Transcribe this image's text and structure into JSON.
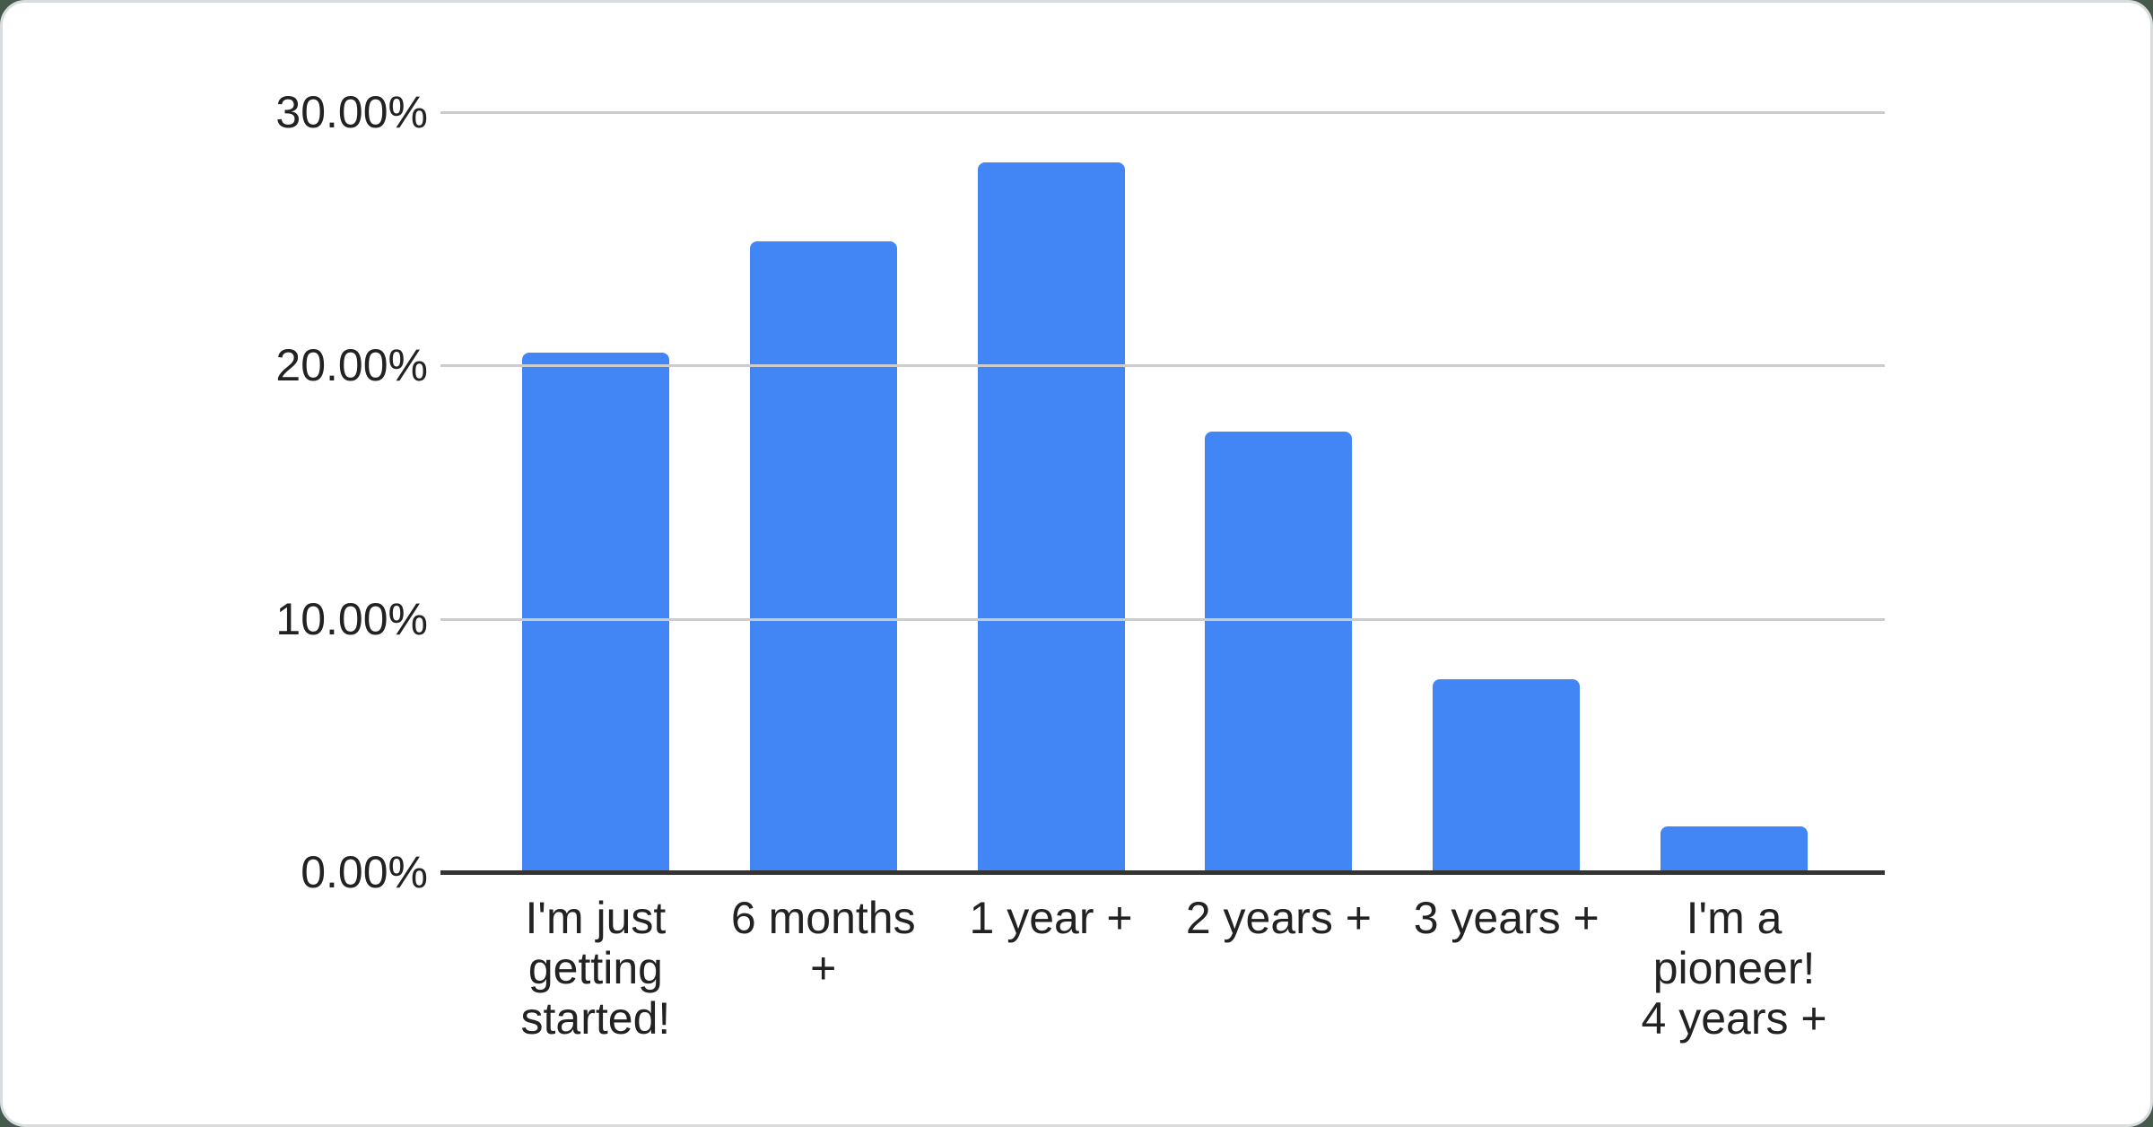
{
  "chart_data": {
    "type": "bar",
    "title": "",
    "categories": [
      "I'm just getting started!",
      "6 months +",
      "1 year +",
      "2 years +",
      "3 years +",
      "I'm a pioneer! 4 years +"
    ],
    "category_lines": [
      "I'm just\ngetting\nstarted!",
      "6 months\n+",
      "1 year +",
      "2 years +",
      "3 years +",
      "I'm a\npioneer!\n4 years +"
    ],
    "values": [
      20.5,
      24.9,
      28,
      17.4,
      7.6,
      1.8
    ],
    "value_unit": "%",
    "xlabel": "",
    "ylabel": "",
    "ylim": [
      0,
      30
    ],
    "grid": true,
    "legend": "none",
    "y_ticks": [
      {
        "value": 30,
        "label": "30.00%"
      },
      {
        "value": 20,
        "label": "20.00%"
      },
      {
        "value": 10,
        "label": "10.00%"
      },
      {
        "value": 0,
        "label": "0.00%"
      }
    ],
    "colors": {
      "bar": "#4285f4",
      "gridline": "#cccccc",
      "axis_line": "#333333",
      "text": "#222222",
      "card_background": "#ffffff",
      "card_border": "#d8dcdf",
      "page_background": "#46594d"
    }
  }
}
